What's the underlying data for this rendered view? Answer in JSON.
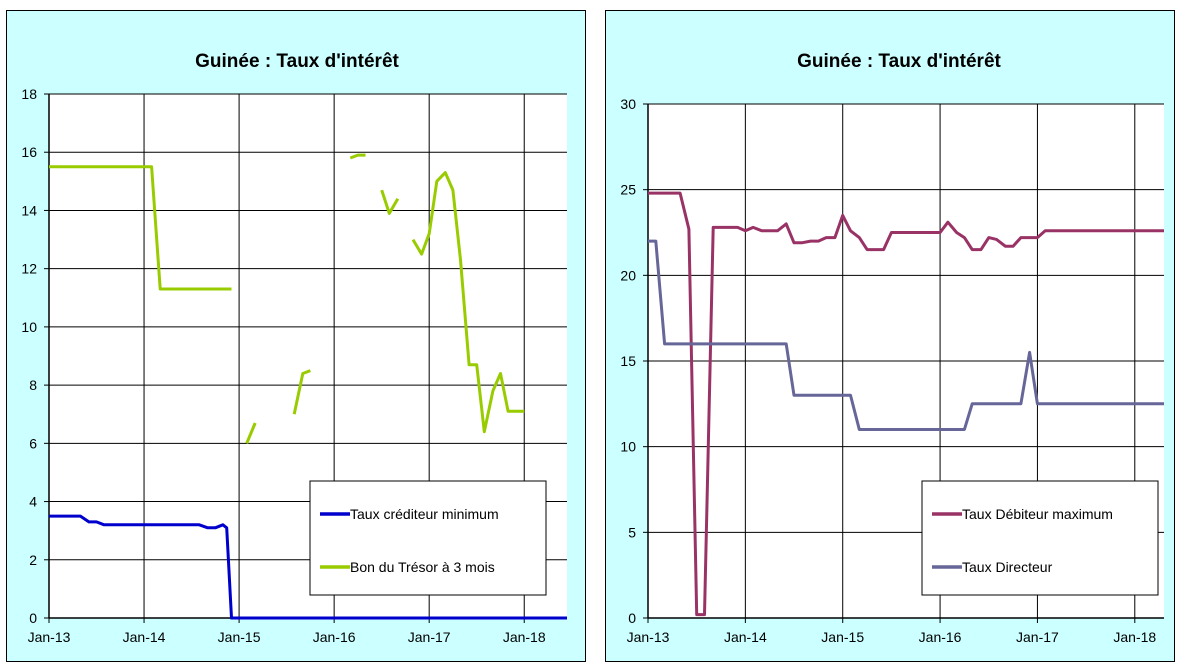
{
  "chart_data": [
    {
      "type": "line",
      "title": "Guinée : Taux d'intérêt",
      "xlabel": "",
      "ylabel": "",
      "x_ticks": [
        "Jan-13",
        "Jan-14",
        "Jan-15",
        "Jan-16",
        "Jan-17",
        "Jan-18"
      ],
      "xlim": [
        2013.0,
        2018.45
      ],
      "ylim": [
        0,
        18
      ],
      "y_ticks": [
        0,
        2,
        4,
        6,
        8,
        10,
        12,
        14,
        16,
        18
      ],
      "grid": true,
      "legend_position": "bottom-right",
      "series": [
        {
          "name": "Taux créditeur minimum",
          "color": "#0000cc",
          "points": [
            [
              2013.0,
              3.5
            ],
            [
              2013.33,
              3.5
            ],
            [
              2013.42,
              3.3
            ],
            [
              2013.5,
              3.3
            ],
            [
              2013.58,
              3.2
            ],
            [
              2014.58,
              3.2
            ],
            [
              2014.67,
              3.1
            ],
            [
              2014.75,
              3.1
            ],
            [
              2014.83,
              3.2
            ],
            [
              2014.87,
              3.1
            ],
            [
              2014.92,
              0
            ],
            [
              2018.45,
              0
            ]
          ]
        },
        {
          "name": "Bon du Trésor à 3 mois",
          "color": "#99cc00",
          "segments": [
            [
              [
                2013.0,
                15.5
              ],
              [
                2014.08,
                15.5
              ],
              [
                2014.17,
                11.3
              ],
              [
                2014.92,
                11.3
              ]
            ],
            [
              [
                2015.08,
                6.0
              ],
              [
                2015.17,
                6.7
              ]
            ],
            [
              [
                2015.58,
                7.0
              ],
              [
                2015.67,
                8.4
              ],
              [
                2015.75,
                8.5
              ]
            ],
            [
              [
                2016.17,
                15.8
              ],
              [
                2016.25,
                15.9
              ],
              [
                2016.33,
                15.9
              ]
            ],
            [
              [
                2016.5,
                14.7
              ],
              [
                2016.58,
                13.9
              ],
              [
                2016.67,
                14.4
              ]
            ],
            [
              [
                2016.83,
                13.0
              ],
              [
                2016.92,
                12.5
              ],
              [
                2017.0,
                13.2
              ],
              [
                2017.08,
                15.0
              ],
              [
                2017.17,
                15.3
              ],
              [
                2017.25,
                14.7
              ],
              [
                2017.33,
                12.3
              ],
              [
                2017.42,
                8.7
              ],
              [
                2017.5,
                8.7
              ],
              [
                2017.58,
                6.4
              ],
              [
                2017.67,
                7.8
              ],
              [
                2017.75,
                8.4
              ],
              [
                2017.83,
                7.1
              ],
              [
                2018.0,
                7.1
              ]
            ]
          ]
        }
      ]
    },
    {
      "type": "line",
      "title": "Guinée : Taux d'intérêt",
      "xlabel": "",
      "ylabel": "",
      "x_ticks": [
        "Jan-13",
        "Jan-14",
        "Jan-15",
        "Jan-16",
        "Jan-17",
        "Jan-18"
      ],
      "xlim": [
        2013.0,
        2018.3
      ],
      "ylim": [
        0,
        30
      ],
      "y_ticks": [
        0,
        5,
        10,
        15,
        20,
        25,
        30
      ],
      "grid": true,
      "legend_position": "bottom-right",
      "series": [
        {
          "name": "Taux Débiteur maximum",
          "color": "#993366",
          "points": [
            [
              2013.0,
              24.8
            ],
            [
              2013.33,
              24.8
            ],
            [
              2013.42,
              22.7
            ],
            [
              2013.5,
              0.2
            ],
            [
              2013.58,
              0.2
            ],
            [
              2013.67,
              22.8
            ],
            [
              2013.92,
              22.8
            ],
            [
              2014.0,
              22.6
            ],
            [
              2014.08,
              22.8
            ],
            [
              2014.17,
              22.6
            ],
            [
              2014.33,
              22.6
            ],
            [
              2014.42,
              23.0
            ],
            [
              2014.5,
              21.9
            ],
            [
              2014.58,
              21.9
            ],
            [
              2014.67,
              22.0
            ],
            [
              2014.75,
              22.0
            ],
            [
              2014.83,
              22.2
            ],
            [
              2014.92,
              22.2
            ],
            [
              2015.0,
              23.5
            ],
            [
              2015.08,
              22.6
            ],
            [
              2015.17,
              22.2
            ],
            [
              2015.25,
              21.5
            ],
            [
              2015.42,
              21.5
            ],
            [
              2015.5,
              22.5
            ],
            [
              2015.92,
              22.5
            ],
            [
              2016.0,
              22.5
            ],
            [
              2016.08,
              23.1
            ],
            [
              2016.17,
              22.5
            ],
            [
              2016.25,
              22.2
            ],
            [
              2016.33,
              21.5
            ],
            [
              2016.42,
              21.5
            ],
            [
              2016.5,
              22.2
            ],
            [
              2016.58,
              22.1
            ],
            [
              2016.67,
              21.7
            ],
            [
              2016.75,
              21.7
            ],
            [
              2016.83,
              22.2
            ],
            [
              2017.0,
              22.2
            ],
            [
              2017.08,
              22.6
            ],
            [
              2018.3,
              22.6
            ]
          ]
        },
        {
          "name": "Taux Directeur",
          "color": "#666699",
          "points": [
            [
              2013.0,
              22.0
            ],
            [
              2013.08,
              22.0
            ],
            [
              2013.17,
              16.0
            ],
            [
              2014.42,
              16.0
            ],
            [
              2014.5,
              13.0
            ],
            [
              2015.08,
              13.0
            ],
            [
              2015.17,
              11.0
            ],
            [
              2016.25,
              11.0
            ],
            [
              2016.33,
              12.5
            ],
            [
              2016.83,
              12.5
            ],
            [
              2016.92,
              15.5
            ],
            [
              2017.0,
              12.5
            ],
            [
              2018.3,
              12.5
            ]
          ]
        }
      ]
    }
  ]
}
